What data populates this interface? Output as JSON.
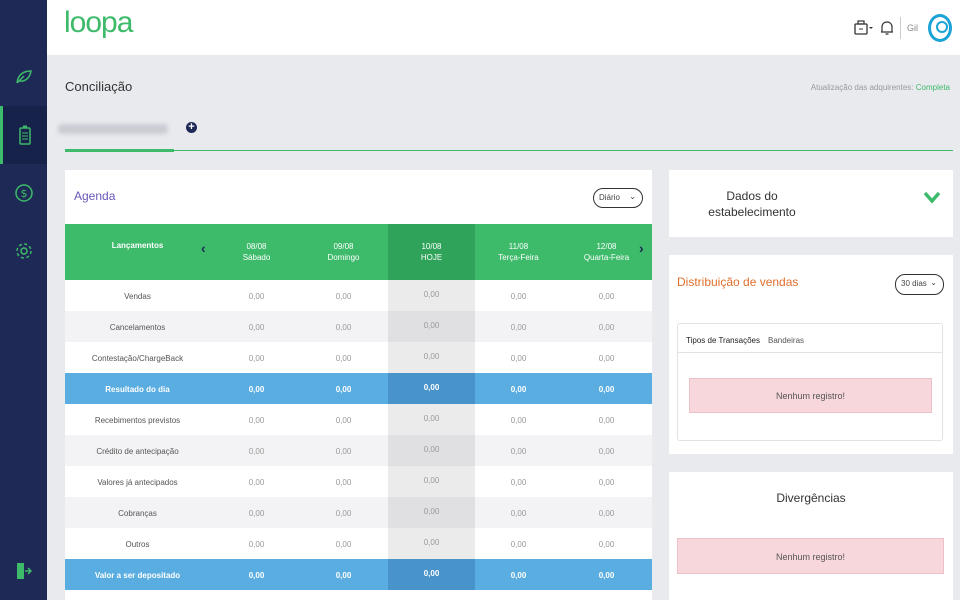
{
  "app": {
    "logo": "loopa"
  },
  "sidebar": {
    "items": [
      {
        "icon": "leaf-icon"
      },
      {
        "icon": "wallet-icon",
        "active": true
      },
      {
        "icon": "dollar-icon"
      },
      {
        "icon": "gear-icon"
      },
      {
        "icon": "logout-icon"
      }
    ]
  },
  "header": {
    "user_name": "Gil"
  },
  "page": {
    "title": "Conciliação",
    "sync_label": "Atualização das adquirentes:",
    "sync_status": "Completa",
    "add_tab": "+"
  },
  "agenda": {
    "title": "Agenda",
    "period": "Diário",
    "header_label": "Lançamentos",
    "columns": [
      {
        "date": "08/08",
        "day": "Sábado"
      },
      {
        "date": "09/08",
        "day": "Domingo"
      },
      {
        "date": "10/08",
        "day": "HOJE"
      },
      {
        "date": "11/08",
        "day": "Terça-Feira"
      },
      {
        "date": "12/08",
        "day": "Quarta-Feira"
      }
    ],
    "rows": [
      {
        "label": "Vendas",
        "values": [
          "0,00",
          "0,00",
          "0,00",
          "0,00",
          "0,00"
        ]
      },
      {
        "label": "Cancelamentos",
        "values": [
          "0,00",
          "0,00",
          "0,00",
          "0,00",
          "0,00"
        ]
      },
      {
        "label": "Contestação/ChargeBack",
        "values": [
          "0,00",
          "0,00",
          "0,00",
          "0,00",
          "0,00"
        ]
      },
      {
        "label": "Resultado do dia",
        "values": [
          "0,00",
          "0,00",
          "0,00",
          "0,00",
          "0,00"
        ]
      },
      {
        "label": "Recebimentos previstos",
        "values": [
          "0,00",
          "0,00",
          "0,00",
          "0,00",
          "0,00"
        ]
      },
      {
        "label": "Crédito de antecipação",
        "values": [
          "0,00",
          "0,00",
          "0,00",
          "0,00",
          "0,00"
        ]
      },
      {
        "label": "Valores já antecipados",
        "values": [
          "0,00",
          "0,00",
          "0,00",
          "0,00",
          "0,00"
        ]
      },
      {
        "label": "Cobranças",
        "values": [
          "0,00",
          "0,00",
          "0,00",
          "0,00",
          "0,00"
        ]
      },
      {
        "label": "Outros",
        "values": [
          "0,00",
          "0,00",
          "0,00",
          "0,00",
          "0,00"
        ]
      },
      {
        "label": "Valor a ser depositado",
        "values": [
          "0,00",
          "0,00",
          "0,00",
          "0,00",
          "0,00"
        ]
      }
    ]
  },
  "dados": {
    "title": "Dados do estabelecimento"
  },
  "distribuicao": {
    "title": "Distribuição de vendas",
    "period": "30 dias",
    "tabs": [
      "Tipos de Transações",
      "Bandeiras"
    ],
    "empty": "Nenhum registro!"
  },
  "divergencias": {
    "title": "Divergências",
    "empty": "Nenhum registro!"
  },
  "colors": {
    "sidebar": "#1e2a55",
    "accent_green": "#3dba6a",
    "result_blue": "#5aade0",
    "agenda_title": "#6a57b9",
    "dist_title": "#e06f2c"
  }
}
